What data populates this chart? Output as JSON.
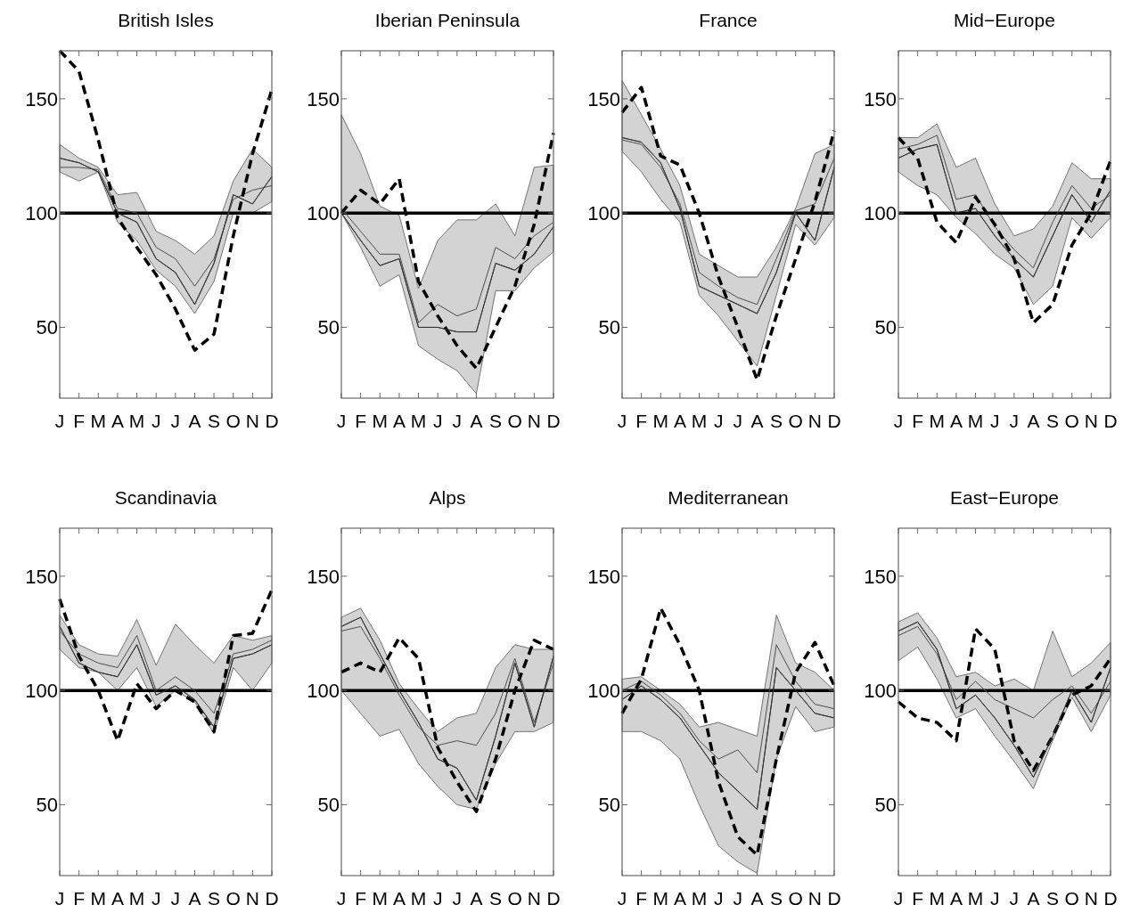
{
  "chart_data": [
    {
      "type": "line",
      "title": "British Isles",
      "categories": [
        "J",
        "F",
        "M",
        "A",
        "M",
        "J",
        "J",
        "A",
        "S",
        "O",
        "N",
        "D"
      ],
      "ylim": [
        19,
        171
      ],
      "yticks": [
        50,
        100,
        150
      ],
      "ref_lines": [
        {
          "axis": "y",
          "value": 100,
          "color": "#000000"
        }
      ],
      "series": [
        {
          "color": "#333333",
          "values": [
            124,
            122,
            118,
            100,
            96,
            80,
            74,
            60,
            78,
            108,
            104,
            116
          ],
          "lower": [
            118,
            114,
            118,
            96,
            88,
            75,
            68,
            56,
            70,
            100,
            100,
            105
          ],
          "upper": [
            130,
            124,
            120,
            108,
            109,
            92,
            88,
            82,
            90,
            114,
            128,
            120
          ]
        },
        {
          "color": "#4d4d4d",
          "values": [
            120,
            120,
            119,
            102,
            100,
            85,
            80,
            68,
            80,
            106,
            110,
            112
          ]
        },
        {
          "color": "#000000",
          "line_style": "dashed",
          "values": [
            171,
            162,
            132,
            98,
            85,
            73,
            58,
            40,
            47,
            90,
            126,
            154
          ]
        }
      ]
    },
    {
      "type": "line",
      "title": "Iberian Peninsula",
      "categories": [
        "J",
        "F",
        "M",
        "A",
        "M",
        "J",
        "J",
        "A",
        "S",
        "O",
        "N",
        "D"
      ],
      "ylim": [
        19,
        171
      ],
      "yticks": [
        50,
        100,
        150
      ],
      "ref_lines": [
        {
          "axis": "y",
          "value": 100,
          "color": "#000000"
        }
      ],
      "series": [
        {
          "color": "#333333",
          "values": [
            100,
            88,
            77,
            80,
            50,
            50,
            48,
            48,
            78,
            75,
            82,
            94
          ],
          "lower": [
            100,
            85,
            68,
            73,
            42,
            36,
            31,
            21,
            66,
            66,
            76,
            83
          ],
          "upper": [
            143,
            126,
            103,
            99,
            67,
            88,
            97,
            97,
            104,
            90,
            120,
            121
          ]
        },
        {
          "color": "#4d4d4d",
          "values": [
            102,
            92,
            82,
            82,
            52,
            60,
            55,
            58,
            85,
            80,
            90,
            96
          ]
        },
        {
          "color": "#000000",
          "line_style": "dashed",
          "values": [
            100,
            110,
            104,
            115,
            70,
            55,
            42,
            32,
            50,
            68,
            95,
            135
          ]
        }
      ]
    },
    {
      "type": "line",
      "title": "France",
      "categories": [
        "J",
        "F",
        "M",
        "A",
        "M",
        "J",
        "J",
        "A",
        "S",
        "O",
        "N",
        "D"
      ],
      "ylim": [
        19,
        171
      ],
      "yticks": [
        50,
        100,
        150
      ],
      "ref_lines": [
        {
          "axis": "y",
          "value": 100,
          "color": "#000000"
        }
      ],
      "series": [
        {
          "color": "#333333",
          "values": [
            133,
            131,
            122,
            102,
            68,
            64,
            60,
            56,
            74,
            100,
            88,
            120
          ],
          "lower": [
            127,
            118,
            106,
            96,
            64,
            55,
            44,
            33,
            64,
            95,
            86,
            98
          ],
          "upper": [
            158,
            143,
            128,
            112,
            82,
            77,
            72,
            72,
            85,
            102,
            126,
            130
          ]
        },
        {
          "color": "#4d4d4d",
          "values": [
            132,
            130,
            120,
            104,
            74,
            68,
            63,
            60,
            80,
            101,
            104,
            124
          ]
        },
        {
          "color": "#000000",
          "line_style": "dashed",
          "values": [
            144,
            155,
            125,
            121,
            100,
            72,
            50,
            27,
            55,
            80,
            105,
            136
          ]
        }
      ]
    },
    {
      "type": "line",
      "title": "Mid−Europe",
      "categories": [
        "J",
        "F",
        "M",
        "A",
        "M",
        "J",
        "J",
        "A",
        "S",
        "O",
        "N",
        "D"
      ],
      "ylim": [
        19,
        171
      ],
      "yticks": [
        50,
        100,
        150
      ],
      "ref_lines": [
        {
          "axis": "y",
          "value": 100,
          "color": "#000000"
        }
      ],
      "series": [
        {
          "color": "#333333",
          "values": [
            124,
            128,
            130,
            100,
            102,
            90,
            80,
            72,
            90,
            108,
            96,
            110
          ],
          "lower": [
            118,
            112,
            108,
            98,
            91,
            82,
            76,
            60,
            68,
            98,
            89,
            98
          ],
          "upper": [
            133,
            133,
            139,
            120,
            124,
            104,
            90,
            93,
            103,
            122,
            115,
            115
          ]
        },
        {
          "color": "#4d4d4d",
          "values": [
            128,
            130,
            134,
            106,
            108,
            94,
            84,
            76,
            96,
            112,
            102,
            108
          ]
        },
        {
          "color": "#000000",
          "line_style": "dashed",
          "values": [
            133,
            124,
            96,
            87,
            107,
            95,
            80,
            52,
            60,
            86,
            100,
            123
          ]
        }
      ]
    },
    {
      "type": "line",
      "title": "Scandinavia",
      "categories": [
        "J",
        "F",
        "M",
        "A",
        "M",
        "J",
        "J",
        "A",
        "S",
        "O",
        "N",
        "D"
      ],
      "ylim": [
        19,
        171
      ],
      "yticks": [
        50,
        100,
        150
      ],
      "ref_lines": [
        {
          "axis": "y",
          "value": 100,
          "color": "#000000"
        }
      ],
      "series": [
        {
          "color": "#333333",
          "values": [
            128,
            112,
            108,
            106,
            120,
            98,
            102,
            96,
            84,
            114,
            116,
            120
          ],
          "lower": [
            118,
            110,
            108,
            100,
            110,
            93,
            100,
            95,
            81,
            110,
            100,
            112
          ],
          "upper": [
            133,
            120,
            116,
            115,
            131,
            111,
            129,
            120,
            112,
            124,
            122,
            124
          ]
        },
        {
          "color": "#4d4d4d",
          "values": [
            126,
            116,
            112,
            110,
            124,
            100,
            106,
            100,
            90,
            116,
            118,
            122
          ]
        },
        {
          "color": "#000000",
          "line_style": "dashed",
          "values": [
            140,
            115,
            100,
            78,
            103,
            92,
            100,
            95,
            82,
            124,
            125,
            144
          ]
        }
      ]
    },
    {
      "type": "line",
      "title": "Alps",
      "categories": [
        "J",
        "F",
        "M",
        "A",
        "M",
        "J",
        "J",
        "A",
        "S",
        "O",
        "N",
        "D"
      ],
      "ylim": [
        19,
        171
      ],
      "yticks": [
        50,
        100,
        150
      ],
      "ref_lines": [
        {
          "axis": "y",
          "value": 100,
          "color": "#000000"
        }
      ],
      "series": [
        {
          "color": "#333333",
          "values": [
            128,
            132,
            116,
            100,
            86,
            70,
            66,
            52,
            80,
            112,
            84,
            115
          ],
          "lower": [
            100,
            90,
            80,
            83,
            68,
            58,
            50,
            48,
            68,
            82,
            82,
            86
          ],
          "upper": [
            132,
            136,
            122,
            103,
            92,
            82,
            88,
            90,
            110,
            120,
            118,
            118
          ]
        },
        {
          "color": "#4d4d4d",
          "values": [
            126,
            128,
            114,
            98,
            84,
            76,
            78,
            76,
            90,
            114,
            86,
            112
          ]
        },
        {
          "color": "#000000",
          "line_style": "dashed",
          "values": [
            108,
            112,
            108,
            123,
            114,
            75,
            60,
            47,
            70,
            100,
            122,
            118
          ]
        }
      ]
    },
    {
      "type": "line",
      "title": "Mediterranean",
      "categories": [
        "J",
        "F",
        "M",
        "A",
        "M",
        "J",
        "J",
        "A",
        "S",
        "O",
        "N",
        "D"
      ],
      "ylim": [
        19,
        171
      ],
      "yticks": [
        50,
        100,
        150
      ],
      "ref_lines": [
        {
          "axis": "y",
          "value": 100,
          "color": "#000000"
        }
      ],
      "series": [
        {
          "color": "#333333",
          "values": [
            96,
            102,
            96,
            88,
            76,
            64,
            56,
            48,
            110,
            100,
            90,
            88
          ],
          "lower": [
            82,
            82,
            78,
            70,
            50,
            32,
            25,
            20,
            70,
            93,
            82,
            84
          ],
          "upper": [
            105,
            106,
            100,
            94,
            84,
            86,
            83,
            80,
            133,
            112,
            108,
            100
          ]
        },
        {
          "color": "#4d4d4d",
          "values": [
            100,
            104,
            98,
            90,
            78,
            70,
            74,
            64,
            120,
            104,
            94,
            92
          ]
        },
        {
          "color": "#000000",
          "line_style": "dashed",
          "values": [
            90,
            105,
            136,
            120,
            100,
            60,
            36,
            28,
            70,
            108,
            121,
            102
          ]
        }
      ]
    },
    {
      "type": "line",
      "title": "East−Europe",
      "categories": [
        "J",
        "F",
        "M",
        "A",
        "M",
        "J",
        "J",
        "A",
        "S",
        "O",
        "N",
        "D"
      ],
      "ylim": [
        19,
        171
      ],
      "yticks": [
        50,
        100,
        150
      ],
      "ref_lines": [
        {
          "axis": "y",
          "value": 100,
          "color": "#000000"
        }
      ],
      "series": [
        {
          "color": "#333333",
          "values": [
            126,
            130,
            118,
            92,
            98,
            88,
            76,
            62,
            80,
            100,
            86,
            110
          ],
          "lower": [
            113,
            119,
            105,
            88,
            92,
            80,
            69,
            57,
            78,
            97,
            82,
            98
          ],
          "upper": [
            130,
            134,
            123,
            106,
            108,
            102,
            105,
            100,
            126,
            106,
            112,
            121
          ]
        },
        {
          "color": "#4d4d4d",
          "values": [
            124,
            128,
            116,
            96,
            104,
            96,
            92,
            88,
            96,
            102,
            90,
            104
          ]
        },
        {
          "color": "#000000",
          "line_style": "dashed",
          "values": [
            95,
            88,
            86,
            78,
            127,
            118,
            78,
            65,
            80,
            98,
            102,
            114
          ]
        }
      ]
    }
  ]
}
